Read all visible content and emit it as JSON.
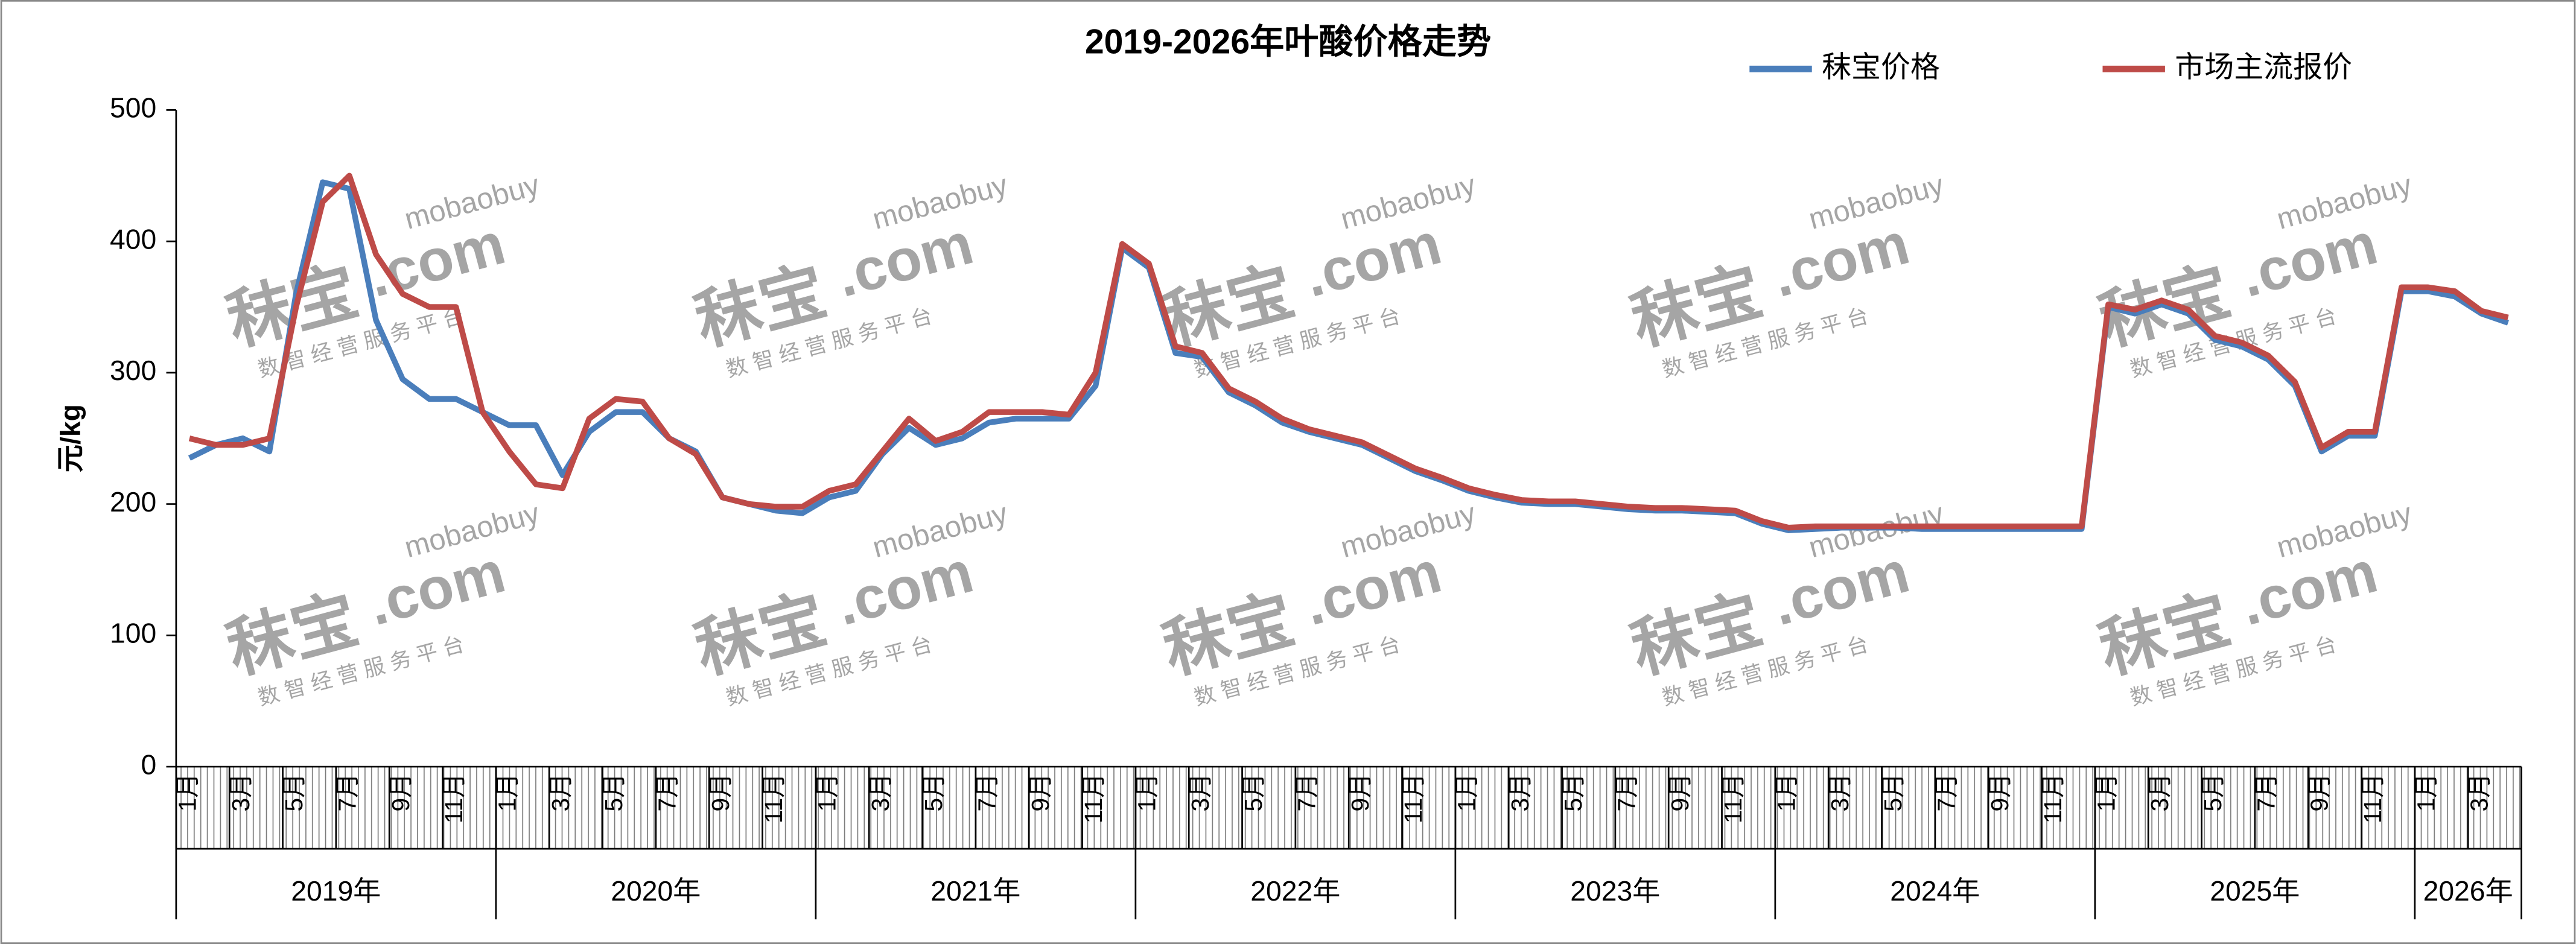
{
  "chart_data": {
    "type": "line",
    "title": "2019-2026年叶酸价格走势",
    "y_label": "元/kg",
    "ylim": [
      0,
      500
    ],
    "yticks": [
      0,
      100,
      200,
      300,
      400,
      500
    ],
    "legend": "top-right",
    "watermark": {
      "brand": "秣宝",
      "domain": ".com",
      "name": "mobaobuy",
      "slogan": "数 智 经 营 服 务 平 台"
    },
    "year_groups": [
      "2019年",
      "2020年",
      "2021年",
      "2022年",
      "2023年",
      "2024年",
      "2025年",
      "2026年"
    ],
    "categories": [
      "1月",
      null,
      "3月",
      null,
      "5月",
      null,
      "7月",
      null,
      "9月",
      null,
      "11月",
      null,
      "1月",
      null,
      "3月",
      null,
      "5月",
      null,
      "7月",
      null,
      "9月",
      null,
      "11月",
      null,
      "1月",
      null,
      "3月",
      null,
      "5月",
      null,
      "7月",
      null,
      "9月",
      null,
      "11月",
      null,
      "1月",
      null,
      "3月",
      null,
      "5月",
      null,
      "7月",
      null,
      "9月",
      null,
      "11月",
      null,
      "1月",
      null,
      "3月",
      null,
      "5月",
      null,
      "7月",
      null,
      "9月",
      null,
      "11月",
      null,
      "1月",
      null,
      "3月",
      null,
      "5月",
      null,
      "7月",
      null,
      "9月",
      null,
      "11月",
      null,
      "1月",
      null,
      "3月",
      null,
      "5月",
      null,
      "7月",
      null,
      "9月",
      null,
      "11月",
      null,
      "1月",
      null,
      "3月",
      null
    ],
    "series": [
      {
        "name": "秣宝价格",
        "color": "#4a7ebb",
        "values": [
          235,
          245,
          250,
          240,
          360,
          445,
          440,
          340,
          295,
          280,
          280,
          270,
          260,
          260,
          222,
          255,
          270,
          270,
          250,
          240,
          205,
          200,
          195,
          193,
          205,
          210,
          238,
          258,
          245,
          250,
          262,
          265,
          265,
          265,
          290,
          395,
          380,
          315,
          312,
          285,
          275,
          262,
          255,
          250,
          245,
          235,
          225,
          218,
          210,
          205,
          201,
          200,
          200,
          198,
          196,
          195,
          195,
          194,
          193,
          185,
          180,
          181,
          182,
          182,
          182,
          181,
          181,
          181,
          181,
          181,
          181,
          181,
          350,
          345,
          352,
          345,
          325,
          320,
          310,
          290,
          240,
          252,
          252,
          362,
          362,
          358,
          345,
          338
        ]
      },
      {
        "name": "市场主流报价",
        "color": "#be4b48",
        "values": [
          250,
          245,
          245,
          250,
          350,
          430,
          450,
          390,
          360,
          350,
          350,
          270,
          240,
          215,
          212,
          265,
          280,
          278,
          250,
          238,
          205,
          200,
          198,
          198,
          210,
          215,
          240,
          265,
          248,
          255,
          270,
          270,
          270,
          268,
          300,
          398,
          383,
          320,
          315,
          288,
          278,
          265,
          257,
          252,
          247,
          237,
          227,
          220,
          212,
          207,
          203,
          202,
          202,
          200,
          198,
          197,
          197,
          196,
          195,
          187,
          182,
          183,
          183,
          183,
          183,
          183,
          183,
          183,
          183,
          183,
          183,
          183,
          352,
          348,
          355,
          348,
          328,
          323,
          313,
          293,
          243,
          255,
          255,
          365,
          365,
          362,
          347,
          342
        ]
      }
    ]
  }
}
